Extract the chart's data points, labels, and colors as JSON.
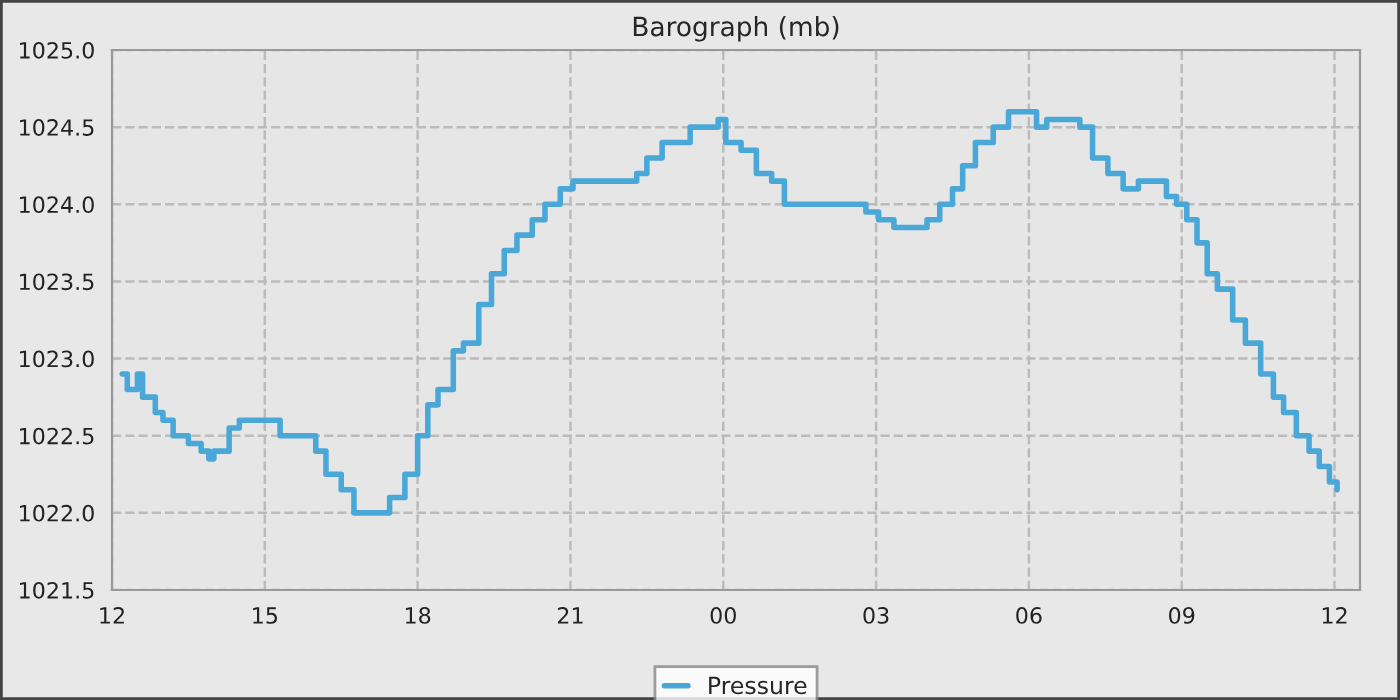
{
  "chart_data": {
    "type": "step",
    "title": "Barograph (mb)",
    "x": [
      12.2,
      12.3,
      12.5,
      12.6,
      12.85,
      13.0,
      13.2,
      13.5,
      13.75,
      13.9,
      14.0,
      14.3,
      14.5,
      14.9,
      15.3,
      15.7,
      16.0,
      16.2,
      16.5,
      16.75,
      17.2,
      17.45,
      17.75,
      18.0,
      18.2,
      18.4,
      18.7,
      18.9,
      19.2,
      19.45,
      19.7,
      19.95,
      20.25,
      20.5,
      20.8,
      21.05,
      21.5,
      21.9,
      22.3,
      22.5,
      22.8,
      23.1,
      23.35,
      23.7,
      23.9,
      24.05,
      24.35,
      24.65,
      24.95,
      25.2,
      25.6,
      26.0,
      26.4,
      26.8,
      27.05,
      27.35,
      27.75,
      28.0,
      28.25,
      28.5,
      28.7,
      28.95,
      29.3,
      29.6,
      29.9,
      30.15,
      30.35,
      30.7,
      31.0,
      31.25,
      31.55,
      31.85,
      32.15,
      32.4,
      32.7,
      32.9,
      33.1,
      33.3,
      33.5,
      33.7,
      34.0,
      34.25,
      34.55,
      34.8,
      35.0,
      35.25,
      35.5,
      35.7,
      35.9,
      36.05
    ],
    "series": [
      {
        "name": "Pressure",
        "color": "#4aa8d8",
        "values": [
          1022.9,
          1022.8,
          1022.9,
          1022.75,
          1022.65,
          1022.6,
          1022.5,
          1022.45,
          1022.4,
          1022.35,
          1022.4,
          1022.55,
          1022.6,
          1022.6,
          1022.5,
          1022.5,
          1022.4,
          1022.25,
          1022.15,
          1022.0,
          1022.0,
          1022.1,
          1022.25,
          1022.5,
          1022.7,
          1022.8,
          1023.05,
          1023.1,
          1023.35,
          1023.55,
          1023.7,
          1023.8,
          1023.9,
          1024.0,
          1024.1,
          1024.15,
          1024.15,
          1024.15,
          1024.2,
          1024.3,
          1024.4,
          1024.4,
          1024.5,
          1024.5,
          1024.55,
          1024.4,
          1024.35,
          1024.2,
          1024.15,
          1024.0,
          1024.0,
          1024.0,
          1024.0,
          1023.95,
          1023.9,
          1023.85,
          1023.85,
          1023.9,
          1024.0,
          1024.1,
          1024.25,
          1024.4,
          1024.5,
          1024.6,
          1024.6,
          1024.5,
          1024.55,
          1024.55,
          1024.5,
          1024.3,
          1024.2,
          1024.1,
          1024.15,
          1024.15,
          1024.05,
          1024.0,
          1023.9,
          1023.75,
          1023.55,
          1023.45,
          1023.25,
          1023.1,
          1022.9,
          1022.75,
          1022.65,
          1022.5,
          1022.4,
          1022.3,
          1022.2,
          1022.15
        ]
      }
    ],
    "xlim": [
      12,
      36.5
    ],
    "xticks": [
      {
        "value": 12,
        "label": "12"
      },
      {
        "value": 15,
        "label": "15"
      },
      {
        "value": 18,
        "label": "18"
      },
      {
        "value": 21,
        "label": "21"
      },
      {
        "value": 24,
        "label": "00"
      },
      {
        "value": 27,
        "label": "03"
      },
      {
        "value": 30,
        "label": "06"
      },
      {
        "value": 33,
        "label": "09"
      },
      {
        "value": 36,
        "label": "12"
      }
    ],
    "ylim": [
      1021.5,
      1025.0
    ],
    "yticks": [
      {
        "value": 1021.5,
        "label": "1021.5"
      },
      {
        "value": 1022.0,
        "label": "1022.0"
      },
      {
        "value": 1022.5,
        "label": "1022.5"
      },
      {
        "value": 1023.0,
        "label": "1023.0"
      },
      {
        "value": 1023.5,
        "label": "1023.5"
      },
      {
        "value": 1024.0,
        "label": "1024.0"
      },
      {
        "value": 1024.5,
        "label": "1024.5"
      },
      {
        "value": 1025.0,
        "label": "1025.0"
      }
    ],
    "grid": true,
    "legend": "bottom",
    "line_style": "solid",
    "marker": "none"
  }
}
